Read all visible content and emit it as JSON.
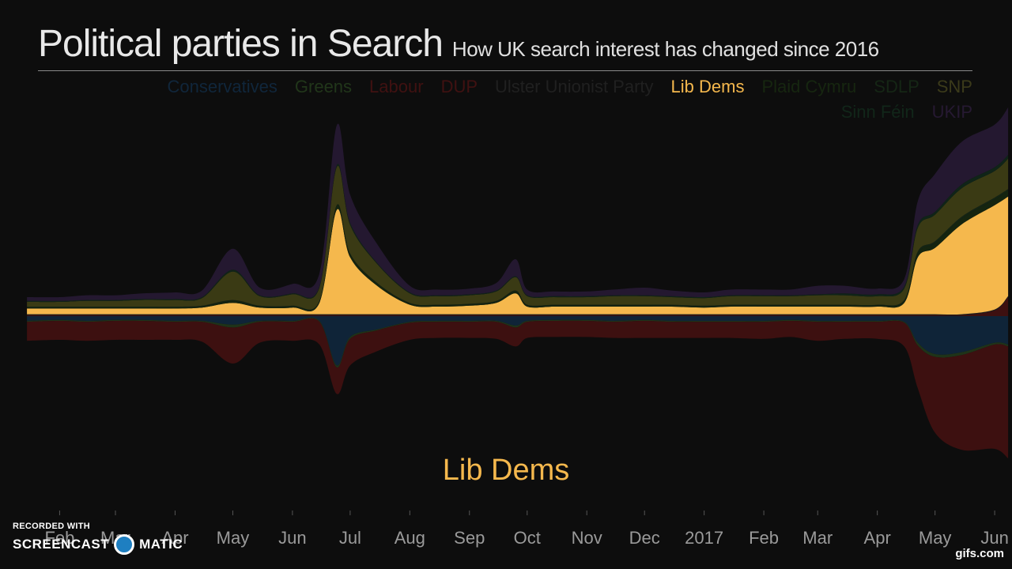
{
  "header": {
    "title": "Political parties in Search",
    "subtitle": "How UK search interest has changed since 2016"
  },
  "focus_label": "Lib Dems",
  "watermark": {
    "recorded_with": "RECORDED WITH",
    "brand_left": "SCREENCAST",
    "brand_right": "MATIC",
    "gif_site": "gifs.com"
  },
  "chart_data": {
    "type": "area",
    "title": "Political parties in Search",
    "subtitle": "How UK search interest has changed since 2016",
    "xlabel": "",
    "ylabel": "",
    "grid": false,
    "legend_placement": "top-right",
    "highlighted_series": "Lib Dems",
    "x_ticks": [
      "Feb",
      "Mar",
      "Apr",
      "May",
      "Jun",
      "Jul",
      "Aug",
      "Sep",
      "Oct",
      "Nov",
      "Dec",
      "2017",
      "Feb",
      "Mar",
      "Apr",
      "May",
      "Jun"
    ],
    "x": [
      "2016-01-15",
      "2016-02-01",
      "2016-02-15",
      "2016-03-01",
      "2016-03-15",
      "2016-04-01",
      "2016-04-15",
      "2016-05-01",
      "2016-05-15",
      "2016-06-01",
      "2016-06-15",
      "2016-06-24",
      "2016-07-01",
      "2016-07-15",
      "2016-08-01",
      "2016-08-15",
      "2016-09-01",
      "2016-09-15",
      "2016-09-25",
      "2016-10-01",
      "2016-10-15",
      "2016-11-01",
      "2016-11-15",
      "2016-12-01",
      "2016-12-15",
      "2017-01-01",
      "2017-01-15",
      "2017-02-01",
      "2017-02-15",
      "2017-03-01",
      "2017-03-15",
      "2017-04-01",
      "2017-04-15",
      "2017-04-22",
      "2017-05-01",
      "2017-05-15",
      "2017-06-01",
      "2017-06-08"
    ],
    "series": [
      {
        "name": "Conservatives",
        "color": "#0f2438",
        "side": "down",
        "values": [
          5,
          4,
          5,
          4,
          4,
          5,
          5,
          9,
          5,
          5,
          5,
          52,
          22,
          14,
          6,
          5,
          5,
          5,
          10,
          5,
          4,
          4,
          5,
          4,
          5,
          5,
          5,
          5,
          4,
          5,
          5,
          5,
          6,
          28,
          40,
          38,
          28,
          30
        ]
      },
      {
        "name": "Greens",
        "color": "#1f3319",
        "side": "down",
        "values": [
          1,
          1,
          1,
          1,
          1,
          1,
          1,
          3,
          1,
          1,
          1,
          2,
          2,
          1,
          1,
          1,
          1,
          1,
          2,
          1,
          1,
          1,
          1,
          1,
          1,
          1,
          1,
          1,
          1,
          1,
          1,
          1,
          1,
          3,
          3,
          3,
          2,
          2
        ]
      },
      {
        "name": "Labour",
        "color": "#3d1010",
        "side": "down",
        "values": [
          20,
          20,
          20,
          20,
          20,
          19,
          21,
          38,
          22,
          20,
          24,
          28,
          28,
          22,
          18,
          17,
          17,
          18,
          20,
          17,
          17,
          17,
          17,
          18,
          17,
          17,
          17,
          18,
          17,
          20,
          18,
          18,
          25,
          45,
          80,
          100,
          110,
          118
        ]
      },
      {
        "name": "DUP",
        "color": "#3d1010",
        "side": "up",
        "values": [
          1,
          1,
          1,
          1,
          1,
          1,
          1,
          1,
          1,
          1,
          1,
          1,
          1,
          1,
          1,
          1,
          1,
          1,
          1,
          1,
          1,
          1,
          1,
          1,
          1,
          1,
          1,
          1,
          1,
          1,
          1,
          1,
          1,
          1,
          1,
          1,
          6,
          20
        ]
      },
      {
        "name": "Ulster Unionist Party",
        "color": "#1e1e1e",
        "side": "up",
        "values": [
          1,
          1,
          1,
          1,
          1,
          1,
          1,
          1,
          1,
          1,
          1,
          1,
          1,
          1,
          1,
          1,
          1,
          1,
          1,
          1,
          1,
          1,
          1,
          1,
          1,
          1,
          1,
          1,
          1,
          1,
          1,
          1,
          1,
          1,
          1,
          1,
          1,
          1
        ]
      },
      {
        "name": "Lib Dems",
        "color": "#f5b84d",
        "side": "up",
        "values": [
          6,
          6,
          6,
          6,
          6,
          6,
          7,
          12,
          7,
          7,
          12,
          110,
          60,
          30,
          10,
          8,
          9,
          12,
          22,
          8,
          8,
          8,
          8,
          8,
          8,
          7,
          8,
          8,
          8,
          8,
          8,
          8,
          12,
          60,
          70,
          95,
          110,
          105
        ]
      },
      {
        "name": "Plaid Cymru",
        "color": "#15240f",
        "side": "up",
        "values": [
          1,
          1,
          1,
          1,
          1,
          1,
          1,
          2,
          1,
          1,
          1,
          4,
          3,
          2,
          1,
          1,
          1,
          1,
          2,
          1,
          1,
          1,
          1,
          1,
          1,
          1,
          1,
          1,
          1,
          1,
          1,
          1,
          2,
          4,
          5,
          6,
          6,
          6
        ]
      },
      {
        "name": "SDLP",
        "color": "#142414",
        "side": "up",
        "values": [
          1,
          1,
          1,
          1,
          1,
          1,
          1,
          1,
          1,
          1,
          1,
          1,
          1,
          1,
          1,
          1,
          1,
          1,
          1,
          1,
          1,
          1,
          1,
          1,
          1,
          1,
          1,
          1,
          1,
          1,
          1,
          1,
          1,
          2,
          2,
          2,
          2,
          2
        ]
      },
      {
        "name": "SNP",
        "color": "#3a3a14",
        "side": "up",
        "values": [
          5,
          5,
          6,
          6,
          7,
          7,
          8,
          30,
          10,
          12,
          14,
          40,
          30,
          20,
          10,
          9,
          9,
          10,
          14,
          9,
          8,
          8,
          9,
          9,
          8,
          8,
          9,
          9,
          9,
          10,
          10,
          9,
          12,
          25,
          28,
          30,
          28,
          32
        ]
      },
      {
        "name": "Sinn Féin",
        "color": "#102418",
        "side": "up",
        "values": [
          1,
          1,
          1,
          1,
          1,
          1,
          1,
          2,
          1,
          1,
          1,
          2,
          2,
          1,
          1,
          1,
          1,
          1,
          1,
          1,
          1,
          1,
          1,
          1,
          1,
          1,
          1,
          1,
          1,
          1,
          2,
          2,
          2,
          3,
          3,
          4,
          4,
          4
        ]
      },
      {
        "name": "UKIP",
        "color": "#241830",
        "side": "up",
        "values": [
          4,
          4,
          5,
          5,
          6,
          7,
          7,
          22,
          8,
          10,
          14,
          42,
          30,
          20,
          7,
          6,
          6,
          8,
          18,
          6,
          5,
          5,
          6,
          8,
          6,
          5,
          6,
          6,
          6,
          9,
          8,
          6,
          8,
          25,
          40,
          45,
          45,
          50
        ]
      }
    ]
  }
}
